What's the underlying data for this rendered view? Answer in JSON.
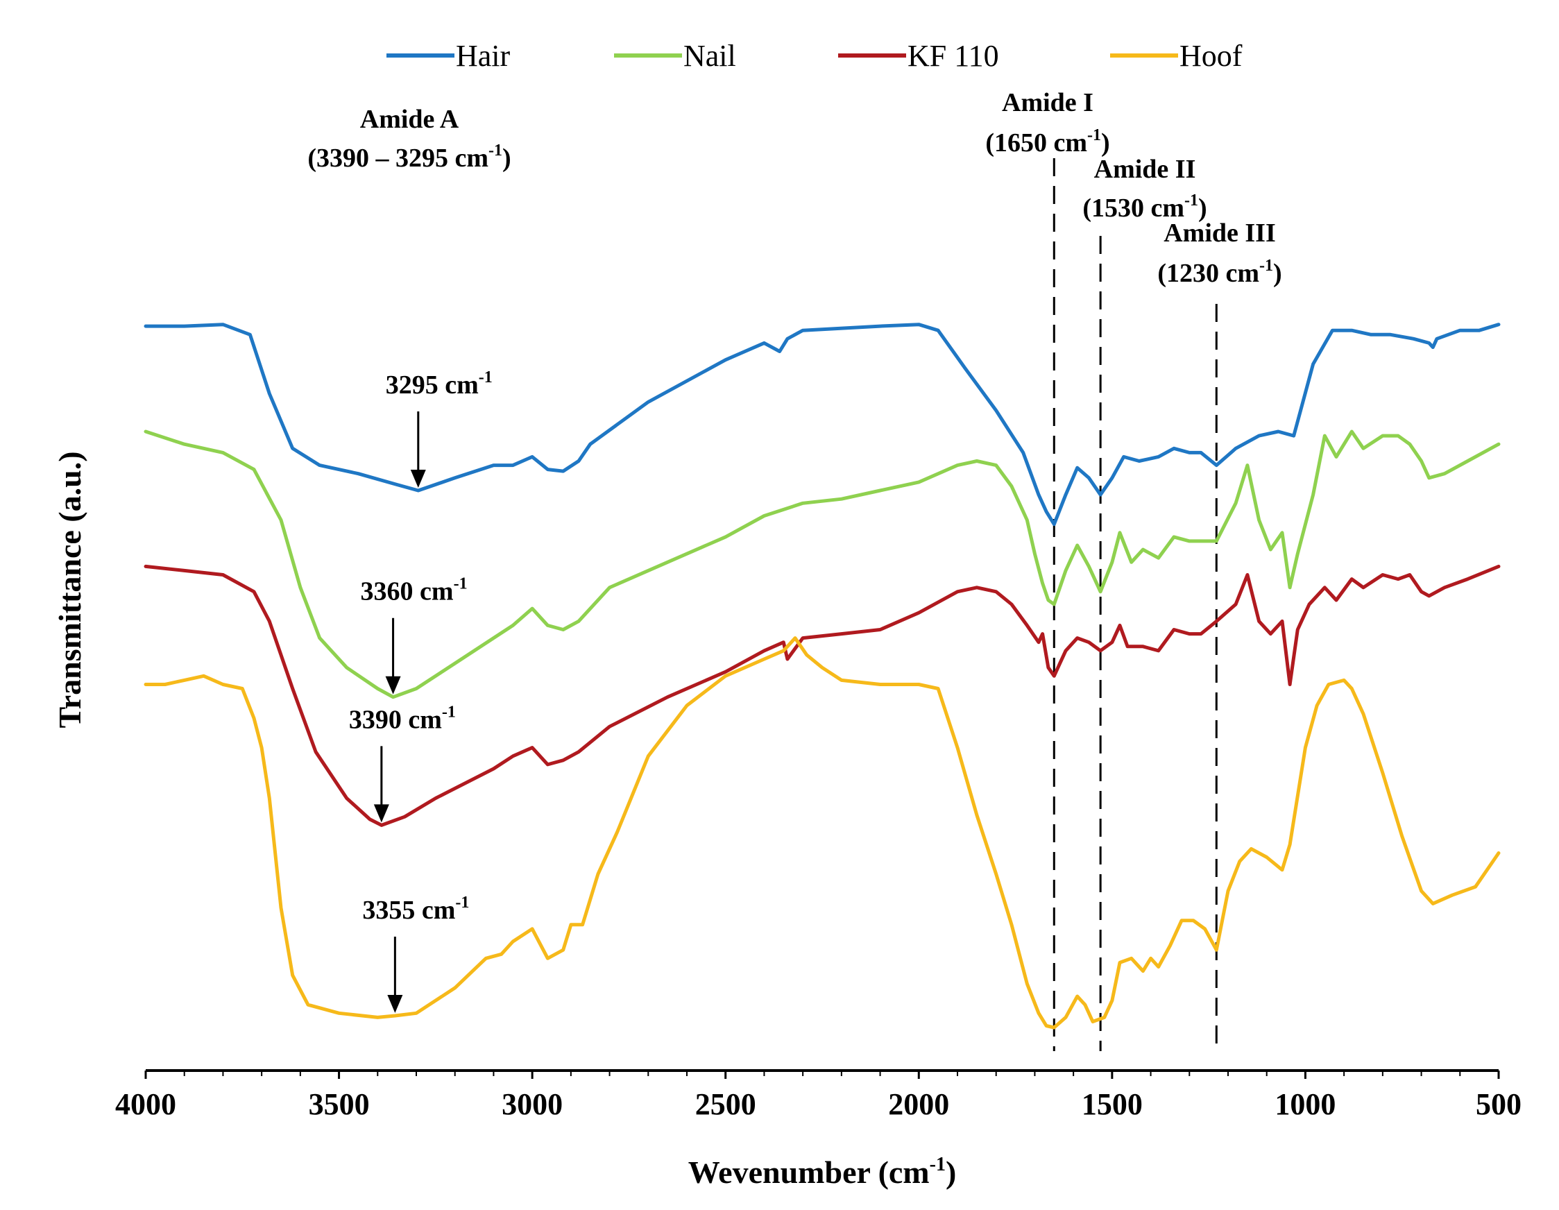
{
  "chart_data": {
    "type": "line",
    "title": "",
    "xlabel": "Wevenumber (cm-1)",
    "ylabel": "Transmittance (a.u.)",
    "xlim": [
      4000,
      500
    ],
    "x_reversed": true,
    "ylim": [
      0,
      10
    ],
    "x_ticks": [
      4000,
      3500,
      3000,
      2500,
      2000,
      1500,
      1000,
      500
    ],
    "legend_position": "top-center",
    "series": [
      {
        "name": "Hair",
        "color": "#1f77c4",
        "points": [
          [
            4000,
            8.6
          ],
          [
            3900,
            8.6
          ],
          [
            3800,
            8.62
          ],
          [
            3730,
            8.5
          ],
          [
            3680,
            7.8
          ],
          [
            3620,
            7.15
          ],
          [
            3550,
            6.95
          ],
          [
            3450,
            6.85
          ],
          [
            3350,
            6.72
          ],
          [
            3295,
            6.65
          ],
          [
            3200,
            6.8
          ],
          [
            3100,
            6.95
          ],
          [
            3050,
            6.95
          ],
          [
            3000,
            7.05
          ],
          [
            2960,
            6.9
          ],
          [
            2920,
            6.88
          ],
          [
            2880,
            7.0
          ],
          [
            2850,
            7.2
          ],
          [
            2700,
            7.7
          ],
          [
            2500,
            8.2
          ],
          [
            2400,
            8.4
          ],
          [
            2360,
            8.3
          ],
          [
            2340,
            8.45
          ],
          [
            2300,
            8.55
          ],
          [
            2100,
            8.6
          ],
          [
            2000,
            8.62
          ],
          [
            1950,
            8.55
          ],
          [
            1880,
            8.1
          ],
          [
            1800,
            7.6
          ],
          [
            1730,
            7.1
          ],
          [
            1690,
            6.6
          ],
          [
            1670,
            6.4
          ],
          [
            1650,
            6.25
          ],
          [
            1620,
            6.6
          ],
          [
            1590,
            6.92
          ],
          [
            1560,
            6.8
          ],
          [
            1530,
            6.6
          ],
          [
            1500,
            6.8
          ],
          [
            1470,
            7.05
          ],
          [
            1430,
            7.0
          ],
          [
            1380,
            7.05
          ],
          [
            1340,
            7.15
          ],
          [
            1300,
            7.1
          ],
          [
            1270,
            7.1
          ],
          [
            1230,
            6.95
          ],
          [
            1180,
            7.15
          ],
          [
            1120,
            7.3
          ],
          [
            1070,
            7.35
          ],
          [
            1030,
            7.3
          ],
          [
            980,
            8.15
          ],
          [
            930,
            8.55
          ],
          [
            880,
            8.55
          ],
          [
            830,
            8.5
          ],
          [
            780,
            8.5
          ],
          [
            720,
            8.45
          ],
          [
            680,
            8.4
          ],
          [
            670,
            8.35
          ],
          [
            660,
            8.45
          ],
          [
            600,
            8.55
          ],
          [
            550,
            8.55
          ],
          [
            500,
            8.62
          ]
        ]
      },
      {
        "name": "Nail",
        "color": "#8fd14f",
        "points": [
          [
            4000,
            7.35
          ],
          [
            3900,
            7.2
          ],
          [
            3800,
            7.1
          ],
          [
            3720,
            6.9
          ],
          [
            3650,
            6.3
          ],
          [
            3600,
            5.5
          ],
          [
            3550,
            4.9
          ],
          [
            3480,
            4.55
          ],
          [
            3400,
            4.3
          ],
          [
            3360,
            4.2
          ],
          [
            3300,
            4.3
          ],
          [
            3200,
            4.6
          ],
          [
            3100,
            4.9
          ],
          [
            3050,
            5.05
          ],
          [
            3000,
            5.25
          ],
          [
            2960,
            5.05
          ],
          [
            2920,
            5.0
          ],
          [
            2880,
            5.1
          ],
          [
            2800,
            5.5
          ],
          [
            2650,
            5.8
          ],
          [
            2500,
            6.1
          ],
          [
            2400,
            6.35
          ],
          [
            2300,
            6.5
          ],
          [
            2200,
            6.55
          ],
          [
            2100,
            6.65
          ],
          [
            2000,
            6.75
          ],
          [
            1900,
            6.95
          ],
          [
            1850,
            7.0
          ],
          [
            1800,
            6.95
          ],
          [
            1760,
            6.7
          ],
          [
            1720,
            6.3
          ],
          [
            1700,
            5.9
          ],
          [
            1680,
            5.55
          ],
          [
            1665,
            5.35
          ],
          [
            1650,
            5.3
          ],
          [
            1620,
            5.7
          ],
          [
            1590,
            6.0
          ],
          [
            1560,
            5.75
          ],
          [
            1530,
            5.45
          ],
          [
            1500,
            5.8
          ],
          [
            1480,
            6.15
          ],
          [
            1450,
            5.8
          ],
          [
            1420,
            5.95
          ],
          [
            1380,
            5.85
          ],
          [
            1340,
            6.1
          ],
          [
            1300,
            6.05
          ],
          [
            1270,
            6.05
          ],
          [
            1230,
            6.05
          ],
          [
            1180,
            6.5
          ],
          [
            1150,
            6.95
          ],
          [
            1120,
            6.3
          ],
          [
            1090,
            5.95
          ],
          [
            1060,
            6.15
          ],
          [
            1040,
            5.5
          ],
          [
            1020,
            5.9
          ],
          [
            980,
            6.6
          ],
          [
            950,
            7.3
          ],
          [
            920,
            7.05
          ],
          [
            880,
            7.35
          ],
          [
            850,
            7.15
          ],
          [
            800,
            7.3
          ],
          [
            760,
            7.3
          ],
          [
            730,
            7.2
          ],
          [
            700,
            7.0
          ],
          [
            680,
            6.8
          ],
          [
            640,
            6.85
          ],
          [
            580,
            7.0
          ],
          [
            500,
            7.2
          ]
        ]
      },
      {
        "name": "KF 110",
        "color": "#b01a1f",
        "points": [
          [
            4000,
            5.75
          ],
          [
            3900,
            5.7
          ],
          [
            3800,
            5.65
          ],
          [
            3720,
            5.45
          ],
          [
            3680,
            5.1
          ],
          [
            3620,
            4.3
          ],
          [
            3560,
            3.55
          ],
          [
            3480,
            3.0
          ],
          [
            3420,
            2.75
          ],
          [
            3390,
            2.68
          ],
          [
            3330,
            2.78
          ],
          [
            3250,
            3.0
          ],
          [
            3100,
            3.35
          ],
          [
            3050,
            3.5
          ],
          [
            3000,
            3.6
          ],
          [
            2960,
            3.4
          ],
          [
            2920,
            3.45
          ],
          [
            2880,
            3.55
          ],
          [
            2800,
            3.85
          ],
          [
            2650,
            4.2
          ],
          [
            2500,
            4.5
          ],
          [
            2400,
            4.75
          ],
          [
            2350,
            4.85
          ],
          [
            2340,
            4.65
          ],
          [
            2300,
            4.9
          ],
          [
            2200,
            4.95
          ],
          [
            2100,
            5.0
          ],
          [
            2000,
            5.2
          ],
          [
            1900,
            5.45
          ],
          [
            1850,
            5.5
          ],
          [
            1800,
            5.45
          ],
          [
            1760,
            5.3
          ],
          [
            1720,
            5.05
          ],
          [
            1690,
            4.85
          ],
          [
            1680,
            4.95
          ],
          [
            1665,
            4.55
          ],
          [
            1650,
            4.45
          ],
          [
            1620,
            4.75
          ],
          [
            1590,
            4.9
          ],
          [
            1560,
            4.85
          ],
          [
            1530,
            4.75
          ],
          [
            1500,
            4.85
          ],
          [
            1480,
            5.05
          ],
          [
            1460,
            4.8
          ],
          [
            1420,
            4.8
          ],
          [
            1380,
            4.75
          ],
          [
            1340,
            5.0
          ],
          [
            1300,
            4.95
          ],
          [
            1270,
            4.95
          ],
          [
            1230,
            5.1
          ],
          [
            1180,
            5.3
          ],
          [
            1150,
            5.65
          ],
          [
            1120,
            5.1
          ],
          [
            1090,
            4.95
          ],
          [
            1060,
            5.1
          ],
          [
            1040,
            4.35
          ],
          [
            1020,
            5.0
          ],
          [
            990,
            5.3
          ],
          [
            950,
            5.5
          ],
          [
            920,
            5.35
          ],
          [
            880,
            5.6
          ],
          [
            850,
            5.5
          ],
          [
            800,
            5.65
          ],
          [
            760,
            5.6
          ],
          [
            730,
            5.65
          ],
          [
            700,
            5.45
          ],
          [
            680,
            5.4
          ],
          [
            640,
            5.5
          ],
          [
            580,
            5.6
          ],
          [
            500,
            5.75
          ]
        ]
      },
      {
        "name": "Hoof",
        "color": "#f6b91a",
        "points": [
          [
            4000,
            4.35
          ],
          [
            3950,
            4.35
          ],
          [
            3900,
            4.4
          ],
          [
            3850,
            4.45
          ],
          [
            3800,
            4.35
          ],
          [
            3750,
            4.3
          ],
          [
            3720,
            3.95
          ],
          [
            3700,
            3.6
          ],
          [
            3680,
            3.0
          ],
          [
            3650,
            1.7
          ],
          [
            3620,
            0.9
          ],
          [
            3580,
            0.55
          ],
          [
            3500,
            0.45
          ],
          [
            3400,
            0.4
          ],
          [
            3355,
            0.42
          ],
          [
            3300,
            0.45
          ],
          [
            3200,
            0.75
          ],
          [
            3120,
            1.1
          ],
          [
            3080,
            1.15
          ],
          [
            3050,
            1.3
          ],
          [
            3000,
            1.45
          ],
          [
            2960,
            1.1
          ],
          [
            2920,
            1.2
          ],
          [
            2900,
            1.5
          ],
          [
            2870,
            1.5
          ],
          [
            2830,
            2.1
          ],
          [
            2780,
            2.6
          ],
          [
            2700,
            3.5
          ],
          [
            2600,
            4.1
          ],
          [
            2500,
            4.45
          ],
          [
            2400,
            4.65
          ],
          [
            2350,
            4.75
          ],
          [
            2320,
            4.9
          ],
          [
            2290,
            4.7
          ],
          [
            2250,
            4.55
          ],
          [
            2200,
            4.4
          ],
          [
            2100,
            4.35
          ],
          [
            2000,
            4.35
          ],
          [
            1950,
            4.3
          ],
          [
            1900,
            3.6
          ],
          [
            1850,
            2.8
          ],
          [
            1800,
            2.1
          ],
          [
            1760,
            1.5
          ],
          [
            1720,
            0.8
          ],
          [
            1690,
            0.45
          ],
          [
            1670,
            0.3
          ],
          [
            1650,
            0.28
          ],
          [
            1620,
            0.4
          ],
          [
            1590,
            0.65
          ],
          [
            1570,
            0.55
          ],
          [
            1550,
            0.35
          ],
          [
            1520,
            0.4
          ],
          [
            1500,
            0.6
          ],
          [
            1480,
            1.05
          ],
          [
            1450,
            1.1
          ],
          [
            1420,
            0.95
          ],
          [
            1400,
            1.1
          ],
          [
            1380,
            1.0
          ],
          [
            1350,
            1.25
          ],
          [
            1320,
            1.55
          ],
          [
            1290,
            1.55
          ],
          [
            1260,
            1.45
          ],
          [
            1230,
            1.2
          ],
          [
            1200,
            1.9
          ],
          [
            1170,
            2.25
          ],
          [
            1140,
            2.4
          ],
          [
            1100,
            2.3
          ],
          [
            1060,
            2.15
          ],
          [
            1040,
            2.45
          ],
          [
            1000,
            3.6
          ],
          [
            970,
            4.1
          ],
          [
            940,
            4.35
          ],
          [
            900,
            4.4
          ],
          [
            880,
            4.3
          ],
          [
            850,
            4.0
          ],
          [
            800,
            3.3
          ],
          [
            750,
            2.55
          ],
          [
            700,
            1.9
          ],
          [
            670,
            1.75
          ],
          [
            620,
            1.85
          ],
          [
            560,
            1.95
          ],
          [
            500,
            2.35
          ]
        ]
      }
    ],
    "reference_lines": [
      {
        "x": 1650,
        "label": "Amide I",
        "value_label": "(1650 cm",
        "superscript": "-1",
        "close": ")"
      },
      {
        "x": 1530,
        "label": "Amide II",
        "value_label": "(1530 cm",
        "superscript": "-1",
        "close": ")"
      },
      {
        "x": 1230,
        "label": "Amide III",
        "value_label": "(1230 cm",
        "superscript": "-1",
        "close": ")"
      }
    ],
    "peak_annotations": [
      {
        "series": "Hair",
        "x": 3295,
        "label": "3295 cm",
        "superscript": "-1"
      },
      {
        "series": "Nail",
        "x": 3360,
        "label": "3360 cm",
        "superscript": "-1"
      },
      {
        "series": "KF 110",
        "x": 3390,
        "label": "3390 cm",
        "superscript": "-1"
      },
      {
        "series": "Hoof",
        "x": 3355,
        "label": "3355 cm",
        "superscript": "-1"
      }
    ],
    "region_annotation": {
      "label": "Amide A",
      "range_label": "(3390 – 3295 cm",
      "superscript": "-1",
      "close": ")"
    }
  },
  "axis": {
    "xlabel_main": "Wevenumber (cm",
    "xlabel_sup": "-1",
    "xlabel_close": ")",
    "ylabel": "Transmittance (a.u.)"
  }
}
